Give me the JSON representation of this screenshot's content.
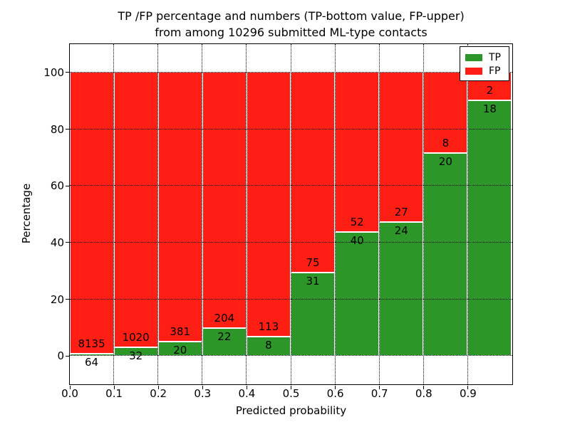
{
  "title": {
    "line1": "TP /FP percentage and numbers (TP-bottom value, FP-upper)",
    "line2": "from among 10296 submitted ML-type contacts"
  },
  "chart_data": {
    "type": "bar",
    "stacked": true,
    "orientation": "vertical",
    "xlabel": "Predicted probability",
    "ylabel": "Percentage",
    "xlim": [
      0.0,
      1.0
    ],
    "ylim": [
      -10,
      110
    ],
    "xticks": [
      0.0,
      0.1,
      0.2,
      0.3,
      0.4,
      0.5,
      0.6,
      0.7,
      0.8,
      0.9
    ],
    "yticks": [
      0,
      20,
      40,
      60,
      80,
      100
    ],
    "bin_left": [
      0.0,
      0.1,
      0.2,
      0.3,
      0.4,
      0.5,
      0.6,
      0.7,
      0.8,
      0.9
    ],
    "bin_width": 0.1,
    "grid": {
      "style": "dotted",
      "color": "#000000"
    },
    "bar_edge_color": "#ffffff",
    "series": [
      {
        "name": "TP",
        "color": "#2d9628",
        "counts": [
          64,
          32,
          20,
          22,
          8,
          31,
          40,
          24,
          20,
          18
        ]
      },
      {
        "name": "FP",
        "color": "#ff1e14",
        "counts": [
          8135,
          1020,
          381,
          204,
          113,
          75,
          52,
          27,
          8,
          2
        ]
      }
    ],
    "tp_percent": [
      0.78,
      3.04,
      4.99,
      9.73,
      6.61,
      29.25,
      43.48,
      47.06,
      71.43,
      90.0
    ],
    "legend": {
      "position": "upper right",
      "entries": [
        "TP",
        "FP"
      ]
    }
  }
}
